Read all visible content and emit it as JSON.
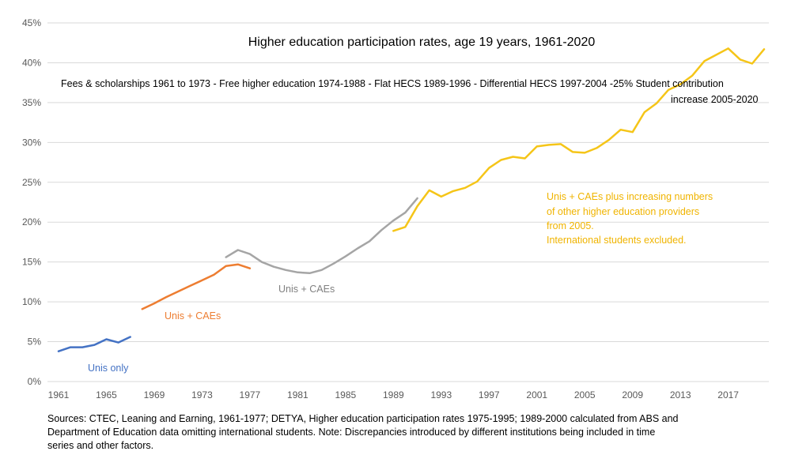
{
  "chart_data": {
    "type": "line",
    "title": "Higher education participation rates, age 19 years, 1961-2020",
    "annotation_lines": [
      "Fees & scholarships 1961 to 1973 - Free higher education 1974-1988 - Flat HECS 1989-1996 - Differential HECS 1997-2004 -25% Student contribution",
      "increase 2005-2020"
    ],
    "ylim": [
      0,
      45
    ],
    "xlim": [
      1961,
      2020
    ],
    "y_ticks": [
      0,
      5,
      10,
      15,
      20,
      25,
      30,
      35,
      40,
      45
    ],
    "y_tick_labels": [
      "0%",
      "5%",
      "10%",
      "15%",
      "20%",
      "25%",
      "30%",
      "35%",
      "40%",
      "45%"
    ],
    "x_ticks": [
      1961,
      1965,
      1969,
      1973,
      1977,
      1981,
      1985,
      1989,
      1993,
      1997,
      2001,
      2005,
      2009,
      2013,
      2017
    ],
    "x_tick_labels": [
      "1961",
      "1965",
      "1969",
      "1973",
      "1977",
      "1981",
      "1985",
      "1989",
      "1993",
      "1997",
      "2001",
      "2005",
      "2009",
      "2013",
      "2017"
    ],
    "grid": "horizontal",
    "series": [
      {
        "name": "Unis only",
        "color": "#4472c4",
        "label_lines": [
          "Unis only"
        ],
        "x": [
          1961,
          1962,
          1963,
          1964,
          1965,
          1966,
          1967
        ],
        "values": [
          3.8,
          4.3,
          4.3,
          4.6,
          5.3,
          4.9,
          5.6
        ]
      },
      {
        "name": "Unis + CAEs",
        "color": "#ed7d31",
        "label_lines": [
          "Unis + CAEs"
        ],
        "x": [
          1968,
          1969,
          1970,
          1971,
          1972,
          1973,
          1974,
          1975,
          1976,
          1977
        ],
        "values": [
          9.1,
          9.8,
          10.6,
          11.3,
          12.0,
          12.7,
          13.4,
          14.5,
          14.7,
          14.2
        ]
      },
      {
        "name": "Unis + CAEs",
        "color": "#a5a5a5",
        "label_lines": [
          "Unis + CAEs"
        ],
        "x": [
          1975,
          1976,
          1977,
          1978,
          1979,
          1980,
          1981,
          1982,
          1983,
          1984,
          1985,
          1986,
          1987,
          1988,
          1989,
          1990,
          1991
        ],
        "values": [
          15.6,
          16.5,
          16.0,
          15.0,
          14.4,
          14.0,
          13.7,
          13.6,
          14.0,
          14.8,
          15.7,
          16.7,
          17.6,
          19.0,
          20.2,
          21.2,
          23.0
        ]
      },
      {
        "name": "Unis + CAEs plus increasing numbers of other higher education providers from 2005. International students excluded.",
        "color": "#f5c518",
        "label_lines": [
          "Unis + CAEs plus increasing numbers",
          "of other higher education providers",
          "from 2005.",
          "International students excluded."
        ],
        "x": [
          1989,
          1990,
          1991,
          1992,
          1993,
          1994,
          1995,
          1996,
          1997,
          1998,
          1999,
          2000,
          2001,
          2002,
          2003,
          2004,
          2005,
          2006,
          2007,
          2008,
          2009,
          2010,
          2011,
          2012,
          2013,
          2014,
          2015,
          2016,
          2017,
          2018,
          2019,
          2020
        ],
        "values": [
          18.9,
          19.4,
          22.0,
          24.0,
          23.2,
          23.9,
          24.3,
          25.1,
          26.8,
          27.8,
          28.2,
          28.0,
          29.5,
          29.7,
          29.8,
          28.8,
          28.7,
          29.3,
          30.3,
          31.6,
          31.3,
          33.8,
          34.9,
          36.6,
          37.3,
          38.4,
          40.2,
          41.0,
          41.8,
          40.4,
          39.9,
          41.7
        ]
      }
    ],
    "sources": [
      "Sources: CTEC, Leaning and Earning, 1961-1977; DETYA, Higher education participation rates 1975-1995; 1989-2000 calculated from ABS and",
      "Department of Education data omitting international students. Note: Discrepancies introduced by different institutions being included in time",
      "series and other factors."
    ]
  }
}
